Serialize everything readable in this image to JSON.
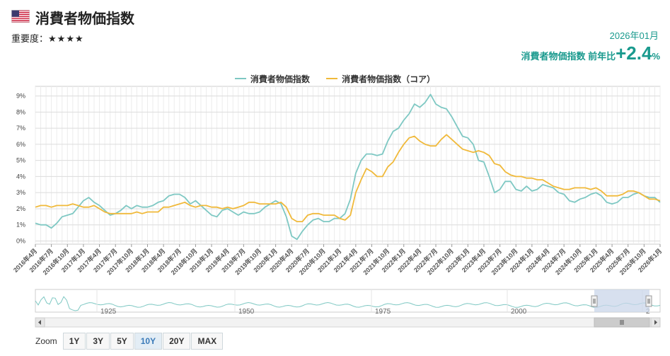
{
  "header": {
    "title": "消費者物価指数",
    "importance_label": "重要度：",
    "importance_stars": "★★★★",
    "date": "2026年01月",
    "headline_label": "消費者物価指数 前年比",
    "headline_value": "+2.4",
    "headline_unit": "%"
  },
  "legend": [
    {
      "name": "消費者物価指数",
      "color": "#7ec8c3"
    },
    {
      "name": "消費者物価指数（コア）",
      "color": "#f0b93a"
    }
  ],
  "zoom": {
    "label": "Zoom",
    "buttons": [
      "1Y",
      "3Y",
      "5Y",
      "10Y",
      "20Y",
      "MAX"
    ],
    "selected": "10Y"
  },
  "navigator": {
    "year_labels": [
      "1925",
      "1950",
      "1975",
      "2000",
      "2"
    ],
    "range_start": "2016-04",
    "range_end": "2026-01"
  },
  "chart_data": {
    "type": "line",
    "x": [
      "2016-04",
      "2016-05",
      "2016-06",
      "2016-07",
      "2016-08",
      "2016-09",
      "2016-10",
      "2016-11",
      "2016-12",
      "2017-01",
      "2017-02",
      "2017-03",
      "2017-04",
      "2017-05",
      "2017-06",
      "2017-07",
      "2017-08",
      "2017-09",
      "2017-10",
      "2017-11",
      "2017-12",
      "2018-01",
      "2018-02",
      "2018-03",
      "2018-04",
      "2018-05",
      "2018-06",
      "2018-07",
      "2018-08",
      "2018-09",
      "2018-10",
      "2018-11",
      "2018-12",
      "2019-01",
      "2019-02",
      "2019-03",
      "2019-04",
      "2019-05",
      "2019-06",
      "2019-07",
      "2019-08",
      "2019-09",
      "2019-10",
      "2019-11",
      "2019-12",
      "2020-01",
      "2020-02",
      "2020-03",
      "2020-04",
      "2020-05",
      "2020-06",
      "2020-07",
      "2020-08",
      "2020-09",
      "2020-10",
      "2020-11",
      "2020-12",
      "2021-01",
      "2021-02",
      "2021-03",
      "2021-04",
      "2021-05",
      "2021-06",
      "2021-07",
      "2021-08",
      "2021-09",
      "2021-10",
      "2021-11",
      "2021-12",
      "2022-01",
      "2022-02",
      "2022-03",
      "2022-04",
      "2022-05",
      "2022-06",
      "2022-07",
      "2022-08",
      "2022-09",
      "2022-10",
      "2022-11",
      "2022-12",
      "2023-01",
      "2023-02",
      "2023-03",
      "2023-04",
      "2023-05",
      "2023-06",
      "2023-07",
      "2023-08",
      "2023-09",
      "2023-10",
      "2023-11",
      "2023-12",
      "2024-01",
      "2024-02",
      "2024-03",
      "2024-04",
      "2024-05",
      "2024-06",
      "2024-07",
      "2024-08",
      "2024-09",
      "2024-10",
      "2024-11",
      "2024-12",
      "2025-01",
      "2025-02",
      "2025-03",
      "2025-04",
      "2025-05",
      "2025-06",
      "2025-07",
      "2025-08",
      "2025-09",
      "2025-10",
      "2025-11",
      "2025-12",
      "2026-01"
    ],
    "x_tick_labels": [
      "2016年4月",
      "2016年7月",
      "2016年10月",
      "2017年1月",
      "2017年4月",
      "2017年7月",
      "2017年10月",
      "2018年1月",
      "2018年4月",
      "2018年7月",
      "2018年10月",
      "2019年1月",
      "2019年4月",
      "2019年7月",
      "2019年10月",
      "2020年1月",
      "2020年4月",
      "2020年7月",
      "2020年10月",
      "2021年1月",
      "2021年4月",
      "2021年7月",
      "2021年10月",
      "2022年1月",
      "2022年4月",
      "2022年7月",
      "2022年10月",
      "2023年1月",
      "2023年4月",
      "2023年7月",
      "2023年10月",
      "2024年1月",
      "2024年4月",
      "2024年7月",
      "2024年10月",
      "2025年1月",
      "2025年4月",
      "2025年7月",
      "2025年10月",
      "2026年1月"
    ],
    "y_ticks": [
      "0%",
      "1%",
      "2%",
      "3%",
      "4%",
      "5%",
      "6%",
      "7%",
      "8%",
      "9%"
    ],
    "ylim": [
      -0.2,
      9.6
    ],
    "grid": true,
    "legend_position": "top-center",
    "series": [
      {
        "name": "消費者物価指数",
        "color": "#7ec8c3",
        "values": [
          1.1,
          1.0,
          1.0,
          0.8,
          1.1,
          1.5,
          1.6,
          1.7,
          2.1,
          2.5,
          2.7,
          2.4,
          2.2,
          1.9,
          1.6,
          1.7,
          1.9,
          2.2,
          2.0,
          2.2,
          2.1,
          2.1,
          2.2,
          2.4,
          2.5,
          2.8,
          2.9,
          2.9,
          2.7,
          2.3,
          2.5,
          2.2,
          1.9,
          1.6,
          1.5,
          1.9,
          2.0,
          1.8,
          1.6,
          1.8,
          1.7,
          1.7,
          1.8,
          2.1,
          2.3,
          2.5,
          2.3,
          1.5,
          0.3,
          0.1,
          0.6,
          1.0,
          1.3,
          1.4,
          1.2,
          1.2,
          1.4,
          1.4,
          1.7,
          2.6,
          4.2,
          5.0,
          5.4,
          5.4,
          5.3,
          5.4,
          6.2,
          6.8,
          7.0,
          7.5,
          7.9,
          8.5,
          8.3,
          8.6,
          9.1,
          8.5,
          8.3,
          8.2,
          7.7,
          7.1,
          6.5,
          6.4,
          6.0,
          5.0,
          4.9,
          4.0,
          3.0,
          3.2,
          3.7,
          3.7,
          3.2,
          3.1,
          3.4,
          3.1,
          3.2,
          3.5,
          3.4,
          3.3,
          3.0,
          2.9,
          2.5,
          2.4,
          2.6,
          2.7,
          2.9,
          3.0,
          2.8,
          2.4,
          2.3,
          2.4,
          2.7,
          2.7,
          2.9,
          3.0,
          2.8,
          2.7,
          2.7,
          2.4
        ]
      },
      {
        "name": "消費者物価指数（コア）",
        "color": "#f0b93a",
        "values": [
          2.1,
          2.2,
          2.2,
          2.1,
          2.2,
          2.2,
          2.2,
          2.3,
          2.2,
          2.1,
          2.1,
          2.2,
          2.0,
          1.8,
          1.7,
          1.7,
          1.7,
          1.7,
          1.7,
          1.8,
          1.7,
          1.8,
          1.8,
          1.8,
          2.1,
          2.1,
          2.2,
          2.3,
          2.4,
          2.2,
          2.1,
          2.2,
          2.2,
          2.1,
          2.1,
          2.0,
          2.1,
          2.0,
          2.1,
          2.2,
          2.4,
          2.4,
          2.3,
          2.3,
          2.3,
          2.3,
          2.4,
          2.1,
          1.4,
          1.2,
          1.2,
          1.6,
          1.7,
          1.7,
          1.6,
          1.6,
          1.6,
          1.4,
          1.3,
          1.6,
          3.0,
          3.8,
          4.5,
          4.3,
          4.0,
          4.0,
          4.6,
          4.9,
          5.5,
          6.0,
          6.4,
          6.5,
          6.2,
          6.0,
          5.9,
          5.9,
          6.3,
          6.6,
          6.3,
          6.0,
          5.7,
          5.6,
          5.5,
          5.6,
          5.5,
          5.3,
          4.8,
          4.7,
          4.3,
          4.1,
          4.0,
          4.0,
          3.9,
          3.9,
          3.8,
          3.8,
          3.6,
          3.4,
          3.3,
          3.2,
          3.2,
          3.3,
          3.3,
          3.3,
          3.2,
          3.3,
          3.1,
          2.8,
          2.8,
          2.8,
          2.9,
          3.1,
          3.1,
          3.0,
          2.8,
          2.6,
          2.6,
          2.5
        ]
      }
    ]
  }
}
